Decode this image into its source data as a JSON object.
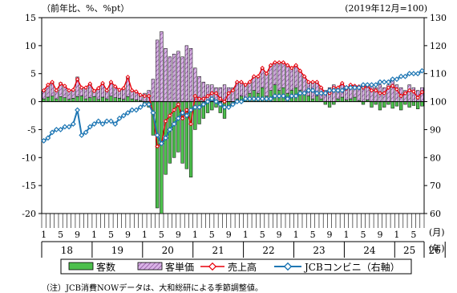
{
  "chart_data": {
    "type": "bar+line",
    "left_axis_label": "（前年比、%、%pt）",
    "right_axis_label": "(2019年12月=100)",
    "left_ylim": [
      -20,
      15
    ],
    "left_yticks": [
      15,
      10,
      5,
      0,
      -5,
      -10,
      -15,
      -20
    ],
    "right_ylim": [
      60,
      130
    ],
    "right_yticks": [
      130,
      120,
      110,
      100,
      90,
      80,
      70,
      60
    ],
    "month_unit": "(月)",
    "year_unit": "(年)",
    "month_labels": [
      "1",
      "5",
      "9",
      "1",
      "5",
      "9",
      "1",
      "5",
      "9",
      "1",
      "5",
      "9",
      "1",
      "5",
      "9",
      "1",
      "5",
      "9",
      "1",
      "5",
      "9",
      "1",
      "5",
      "9",
      "1",
      "5"
    ],
    "years": [
      "18",
      "19",
      "20",
      "21",
      "22",
      "23",
      "24",
      "25",
      "26"
    ],
    "start": "2018-01",
    "legend": [
      {
        "key": "customers",
        "label": "客数"
      },
      {
        "key": "unit_price",
        "label": "客単価"
      },
      {
        "key": "sales",
        "label": "売上高"
      },
      {
        "key": "jcb_index",
        "label": "JCBコンビニ（右軸）"
      }
    ],
    "colors": {
      "customers_fill": "#4cbf4c",
      "unit_price_fill": "#d9b3e6",
      "unit_price_hatch": "#7a3a8c",
      "sales": "#e8000b",
      "jcb_index": "#1f77b4"
    },
    "series": [
      {
        "name": "客数",
        "key": "customers",
        "values": [
          0.5,
          0.8,
          1.0,
          0.5,
          0.9,
          0.7,
          0.4,
          0.6,
          0.9,
          1.0,
          0.5,
          0.7,
          0.9,
          0.4,
          0.8,
          0.5,
          1.0,
          0.7,
          0.6,
          0.4,
          0.9,
          0.5,
          0.3,
          0.2,
          -0.5,
          -1.0,
          -6,
          -19,
          -20,
          -13,
          -11,
          -10,
          -9,
          -11,
          -12,
          -13.5,
          -5,
          -4,
          -3,
          -2,
          -1.5,
          -1,
          -2,
          -3,
          -1,
          -0.5,
          0.5,
          1,
          0.5,
          1.5,
          2,
          1.5,
          2.5,
          1,
          2,
          3,
          2,
          2.5,
          1.5,
          2,
          2.5,
          2,
          1.5,
          1,
          0.5,
          1,
          0.5,
          -0.5,
          -1,
          -0.5,
          0.5,
          0.8,
          0.3,
          0.5,
          0.8,
          0.2,
          -0.5,
          0.3,
          -1,
          -0.5,
          -1.5,
          -1,
          -0.5,
          -1.2,
          -0.8,
          -1.5,
          -0.5,
          -1,
          -0.7,
          -1.3,
          -0.8
        ]
      },
      {
        "name": "客単価",
        "key": "unit_price",
        "values": [
          1.5,
          2.0,
          2.5,
          1.5,
          2.5,
          2.0,
          1.5,
          1.5,
          3.5,
          1.5,
          2.0,
          2.5,
          1.0,
          2.0,
          2.5,
          1.5,
          2.5,
          2.0,
          1.5,
          2.0,
          3.5,
          1.5,
          1.5,
          1.0,
          1.5,
          2.0,
          4,
          11,
          12.5,
          9.5,
          8,
          8.5,
          9,
          8,
          10,
          9.5,
          6,
          4.5,
          3.5,
          3,
          3,
          2.5,
          2.5,
          3,
          2.5,
          2.5,
          3,
          2.5,
          2.5,
          2,
          2.5,
          3,
          3.5,
          4,
          4.5,
          4,
          5,
          4.5,
          5,
          4,
          4,
          3.5,
          3,
          2.5,
          3,
          2.5,
          2,
          2,
          2.5,
          3,
          2,
          2.5,
          2,
          2.5,
          2,
          2.5,
          3,
          2.5,
          3,
          2.5,
          3,
          2.5,
          3,
          4,
          3,
          2.5,
          2,
          3,
          2.5,
          2,
          2.5
        ]
      },
      {
        "name": "売上高",
        "key": "sales",
        "values": [
          2.0,
          3.0,
          3.5,
          2.0,
          3.2,
          2.8,
          2.0,
          2.1,
          4.0,
          2.5,
          2.5,
          3.2,
          1.9,
          2.4,
          3.3,
          2.0,
          3.5,
          2.7,
          2.1,
          2.4,
          4.4,
          2.0,
          1.8,
          1.2,
          1.0,
          1.0,
          -2,
          -8,
          -7.5,
          -3.5,
          -2.5,
          -1.5,
          -0.5,
          -3,
          -1.5,
          -4,
          1,
          0.5,
          0.5,
          1,
          1.5,
          1.5,
          0.5,
          0,
          1.5,
          2,
          3.5,
          3.5,
          3,
          3.5,
          4.5,
          4.5,
          6,
          5,
          6.5,
          7,
          7,
          7,
          6.5,
          6,
          6.5,
          5.5,
          4.5,
          3.5,
          3.5,
          3.5,
          2.5,
          1.5,
          1.5,
          2.5,
          2.5,
          3.3,
          2.3,
          3,
          2.8,
          2.7,
          2.5,
          2.8,
          2,
          2,
          1.5,
          1.5,
          2.5,
          2.8,
          2.2,
          1,
          1.5,
          2,
          1.8,
          0.7,
          1.7
        ]
      },
      {
        "name": "JCBコンビニ（右軸）",
        "key": "jcb_index",
        "values": [
          86,
          87,
          89,
          90,
          90,
          91,
          91,
          92,
          97,
          88,
          89,
          91,
          92,
          93,
          92,
          93,
          93,
          92,
          94,
          95,
          96,
          97,
          97,
          98,
          99,
          99,
          96,
          88,
          85,
          87,
          90,
          92,
          94,
          96,
          95,
          97,
          98,
          98,
          99,
          100,
          101,
          100,
          99,
          98,
          98,
          99,
          100,
          100,
          101,
          101,
          101,
          101,
          101,
          101,
          101,
          102,
          102,
          102,
          101,
          102,
          102,
          103,
          103,
          104,
          104,
          103,
          103,
          103,
          104,
          104,
          104,
          104,
          105,
          105,
          105,
          105,
          106,
          106,
          106,
          106,
          107,
          107,
          107,
          108,
          108,
          109,
          109,
          110,
          110,
          110,
          111
        ]
      }
    ]
  },
  "footnote": "（注）JCB消費NOWデータは、大和総研による季節調整値。"
}
